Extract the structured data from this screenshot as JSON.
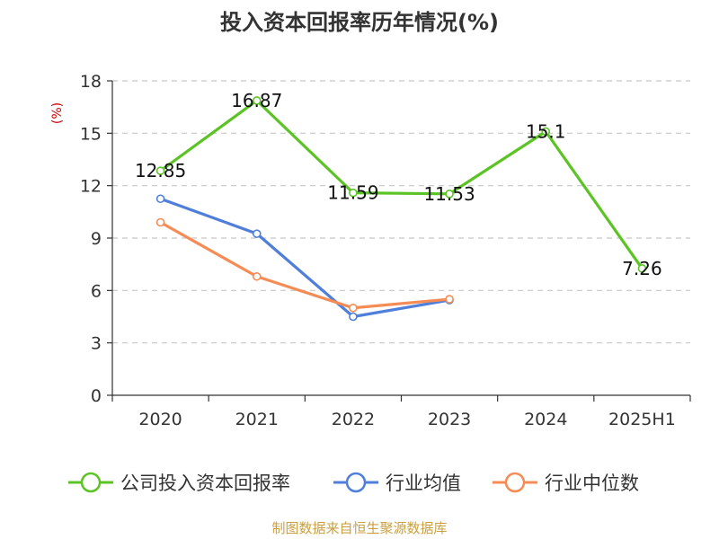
{
  "chart_data": {
    "type": "line",
    "title": "投入资本回报率历年情况(%)",
    "ylabel": "(%)",
    "ylim": [
      0,
      18
    ],
    "yticks": [
      0,
      3,
      6,
      9,
      12,
      15,
      18
    ],
    "categories": [
      "2020",
      "2021",
      "2022",
      "2023",
      "2024",
      "2025H1"
    ],
    "grid": true,
    "legend_position": "bottom",
    "series": [
      {
        "name": "公司投入资本回报率",
        "color": "#5bc424",
        "values": [
          12.85,
          16.87,
          11.59,
          11.53,
          15.1,
          7.26
        ],
        "labels": [
          "12.85",
          "16.87",
          "11.59",
          "11.53",
          "15.1",
          "7.26"
        ]
      },
      {
        "name": "行业均值",
        "color": "#4f7fdb",
        "values": [
          11.25,
          9.25,
          4.5,
          5.45,
          null,
          null
        ]
      },
      {
        "name": "行业中位数",
        "color": "#f58c55",
        "values": [
          9.9,
          6.8,
          5.0,
          5.5,
          null,
          null
        ]
      }
    ]
  },
  "source_text": "制图数据来自恒生聚源数据库"
}
